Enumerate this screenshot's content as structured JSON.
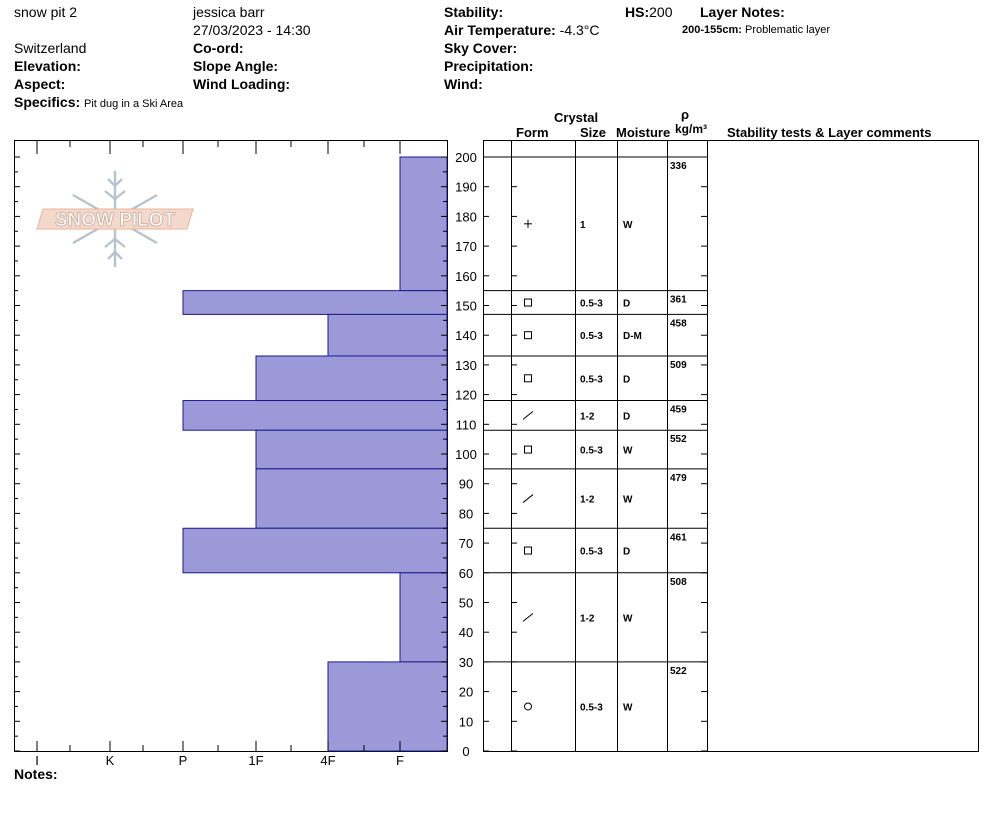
{
  "header": {
    "pit_name": "snow pit 2",
    "observer": "jessica barr",
    "datetime": "27/03/2023 - 14:30",
    "location": "Switzerland",
    "coord_label": "Co-ord:",
    "elevation_label": "Elevation:",
    "slope_label": "Slope Angle:",
    "aspect_label": "Aspect:",
    "wind_loading_label": "Wind Loading:",
    "specifics_label": "Specifics:",
    "specifics_value": "Pit dug in a Ski Area",
    "stability_label": "Stability:",
    "air_temp_label": "Air Temperature:",
    "air_temp_value": "-4.3°C",
    "sky_label": "Sky Cover:",
    "precip_label": "Precipitation:",
    "wind_label": "Wind:",
    "hs_label": "HS:",
    "hs_value": "200",
    "layer_notes_label": "Layer Notes:",
    "layer_note_range": "200-155cm:",
    "layer_note_text": "Problematic layer"
  },
  "logo_text": "SNOW PILOT",
  "table_headers": {
    "crystal": "Crystal",
    "form": "Form",
    "size": "Size",
    "moisture": "Moisture",
    "rho": "ρ",
    "density_unit": "kg/m³",
    "stability": "Stability tests & Layer comments"
  },
  "notes_label": "Notes:",
  "colors": {
    "layer_fill": "#9b99d7",
    "layer_stroke": "#1a1a8c"
  },
  "chart_data": {
    "type": "bar",
    "orientation": "horizontal",
    "y_axis": {
      "min": 0,
      "max": 200,
      "ticks": [
        "0",
        "10",
        "20",
        "30",
        "40",
        "50",
        "60",
        "70",
        "80",
        "90",
        "100",
        "110",
        "120",
        "130",
        "140",
        "150",
        "160",
        "170",
        "180",
        "190",
        "200"
      ]
    },
    "x_axis": {
      "categories": [
        "I",
        "K",
        "P",
        "1F",
        "4F",
        "F"
      ]
    },
    "layers": [
      {
        "top": 200,
        "bottom": 155,
        "hardness": "F",
        "form": "+",
        "form_icon": "plus-icon",
        "size": "1",
        "moisture": "W",
        "density": "336"
      },
      {
        "top": 155,
        "bottom": 147,
        "hardness": "P",
        "form": "□",
        "form_icon": "square-icon",
        "size": "0.5-3",
        "moisture": "D",
        "density": "361"
      },
      {
        "top": 147,
        "bottom": 133,
        "hardness": "4F",
        "form": "□",
        "form_icon": "square-icon",
        "size": "0.5-3",
        "moisture": "D-M",
        "density": "458"
      },
      {
        "top": 133,
        "bottom": 118,
        "hardness": "1F",
        "form": "□",
        "form_icon": "square-icon",
        "size": "0.5-3",
        "moisture": "D",
        "density": "509"
      },
      {
        "top": 118,
        "bottom": 108,
        "hardness": "P",
        "form": "/",
        "form_icon": "slash-icon",
        "size": "1-2",
        "moisture": "D",
        "density": "459"
      },
      {
        "top": 108,
        "bottom": 95,
        "hardness": "1F",
        "form": "□",
        "form_icon": "square-icon",
        "size": "0.5-3",
        "moisture": "W",
        "density": "552"
      },
      {
        "top": 95,
        "bottom": 75,
        "hardness": "1F",
        "form": "/",
        "form_icon": "slash-icon",
        "size": "1-2",
        "moisture": "W",
        "density": "479"
      },
      {
        "top": 75,
        "bottom": 60,
        "hardness": "P",
        "form": "□",
        "form_icon": "square-icon",
        "size": "0.5-3",
        "moisture": "D",
        "density": "461"
      },
      {
        "top": 60,
        "bottom": 30,
        "hardness": "F",
        "form": "/",
        "form_icon": "slash-icon",
        "size": "1-2",
        "moisture": "W",
        "density": "508"
      },
      {
        "top": 30,
        "bottom": 0,
        "hardness": "4F",
        "form": "○",
        "form_icon": "circle-icon",
        "size": "0.5-3",
        "moisture": "W",
        "density": "522"
      }
    ]
  }
}
